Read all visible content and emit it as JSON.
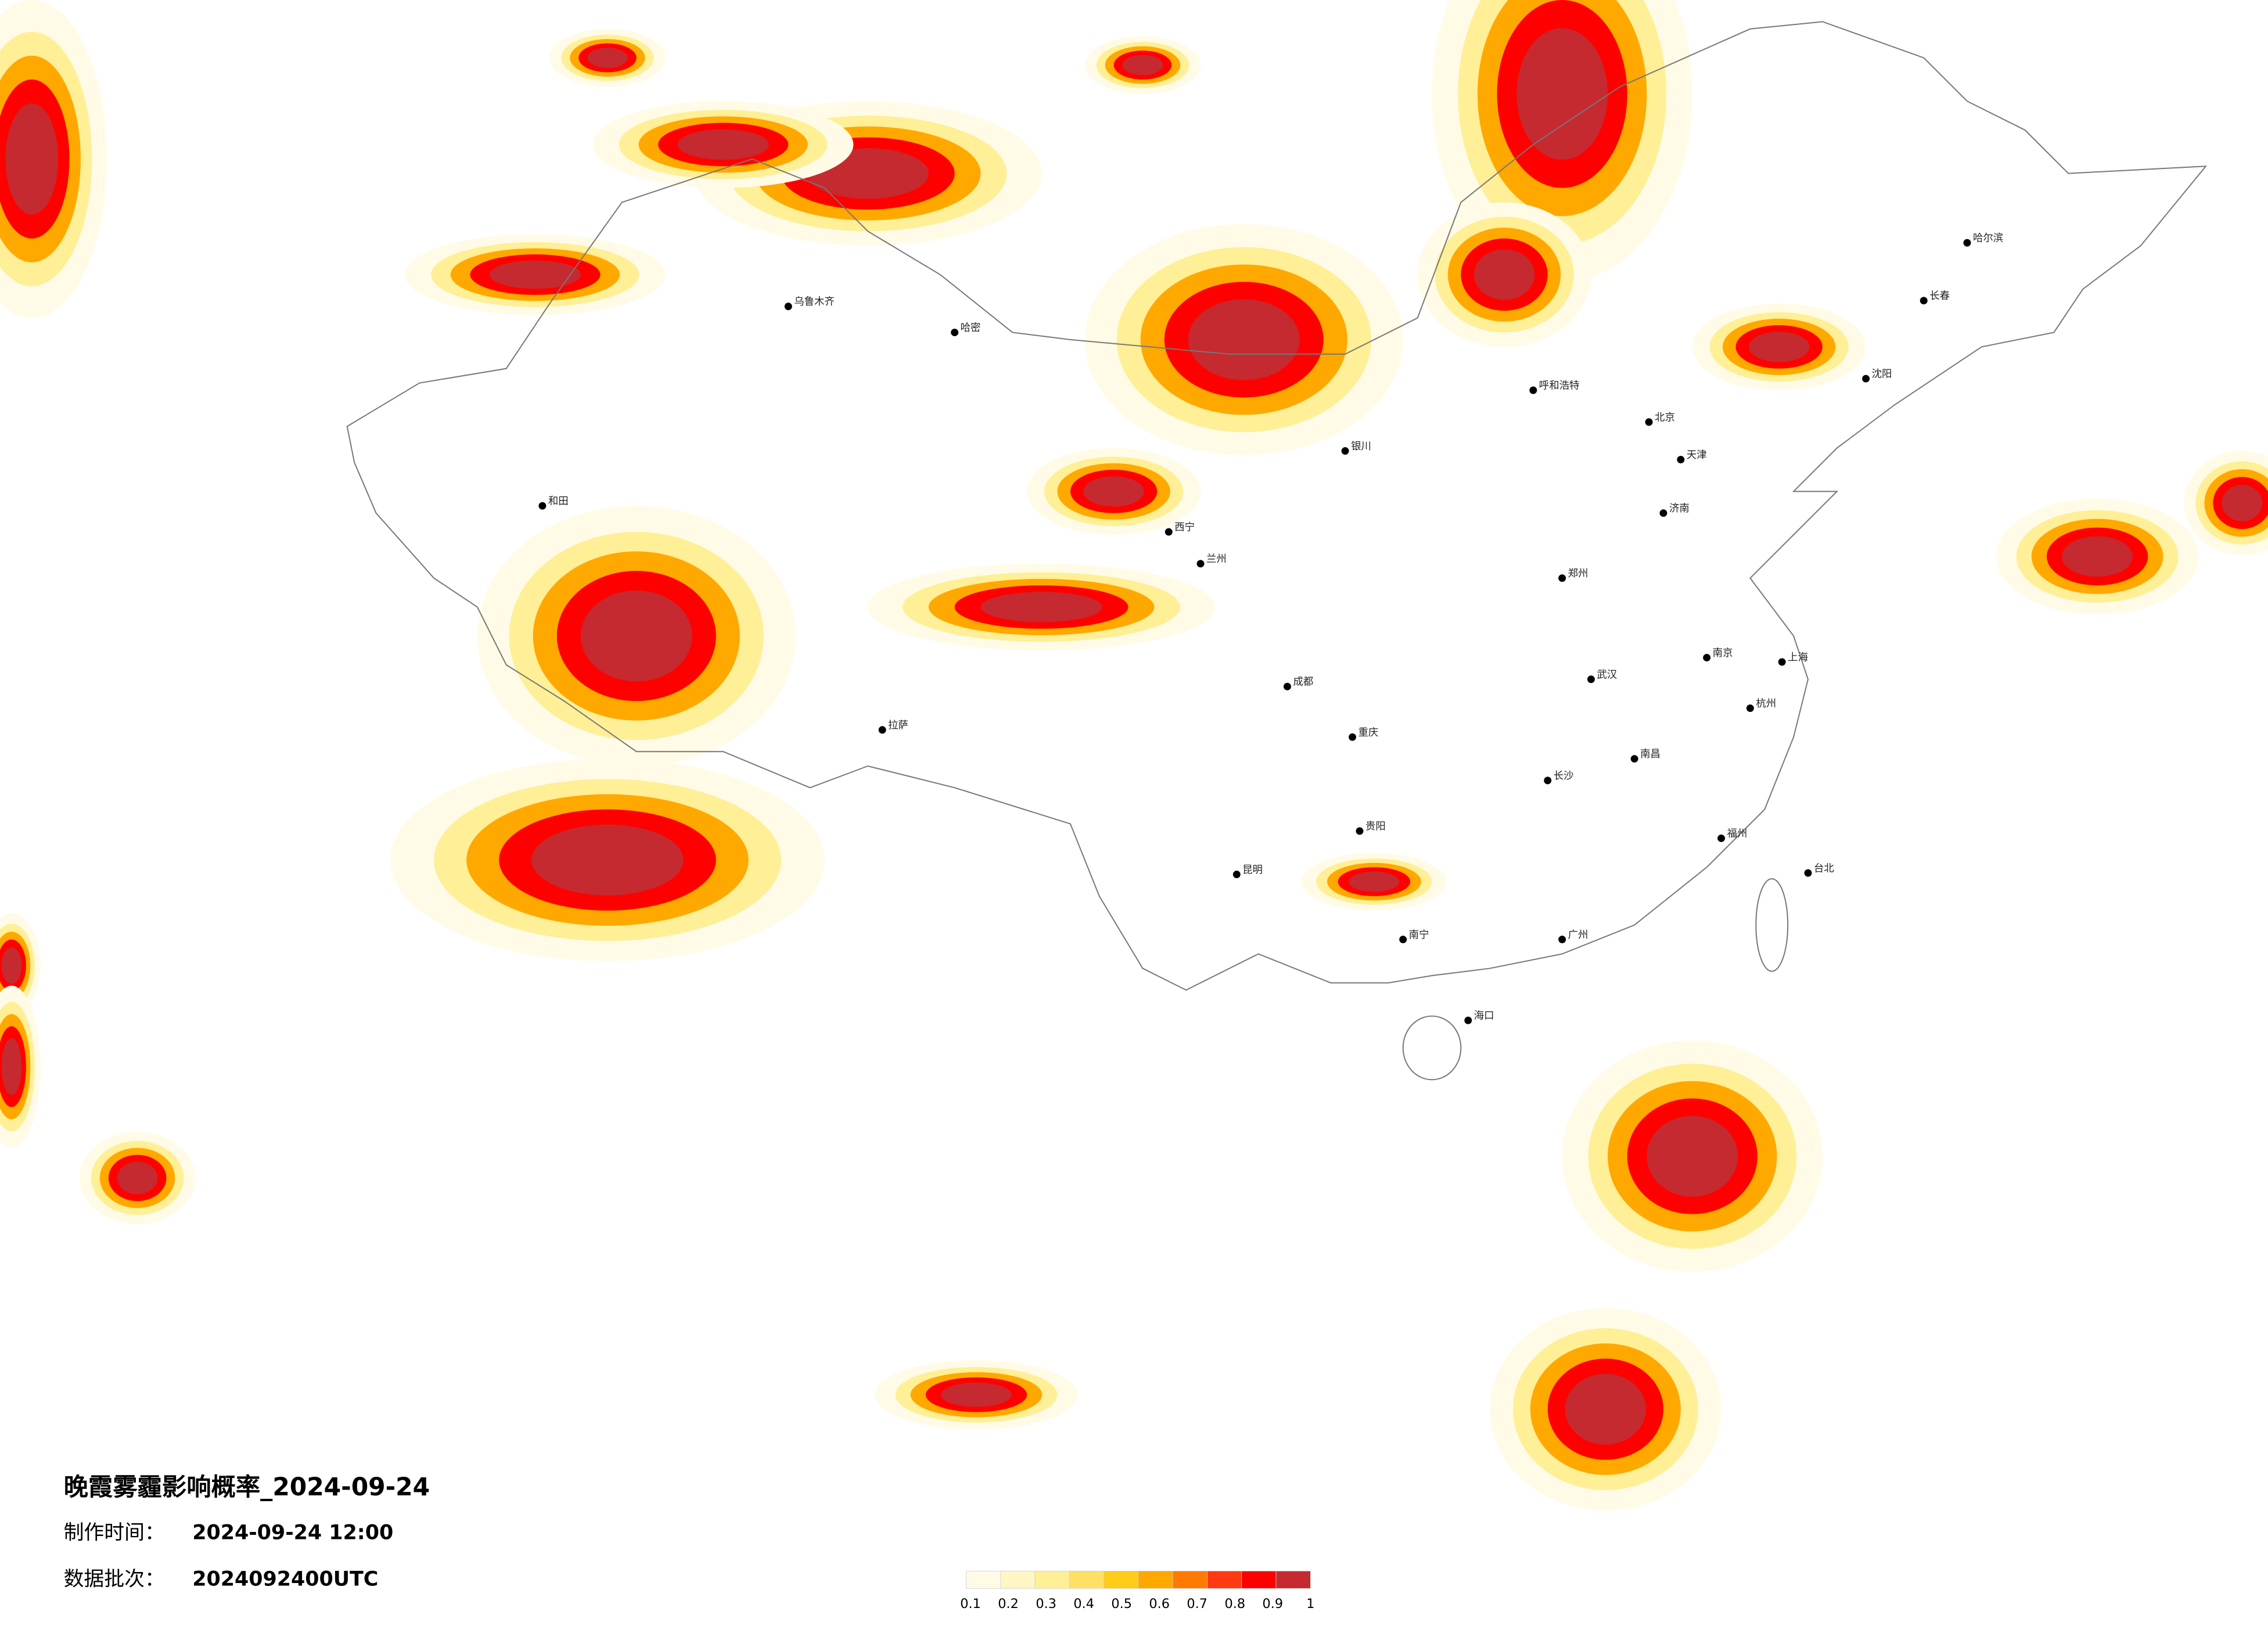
{
  "header": {
    "title": "晚霞雾霾影响概率_2024-09-24",
    "time_label": "制作时间：",
    "time_value": "2024-09-24 12:00",
    "batch_label": "数据批次：",
    "batch_value": "2024092400UTC"
  },
  "colorbar": {
    "ticks": [
      0.1,
      0.2,
      0.3,
      0.4,
      0.5,
      0.6,
      0.7,
      0.8,
      0.9,
      1
    ],
    "colors": [
      "#fffbe6",
      "#fff6c4",
      "#ffef96",
      "#ffe066",
      "#ffcc1a",
      "#ffa800",
      "#ff7a00",
      "#ff3a10",
      "#ff0000",
      "#c52a30"
    ]
  },
  "cities": [
    "哈尔滨",
    "长春",
    "沈阳",
    "北京",
    "天津",
    "呼和浩特",
    "济南",
    "郑州",
    "南京",
    "上海",
    "杭州",
    "武汉",
    "南昌",
    "长沙",
    "福州",
    "台北",
    "广州",
    "南宁",
    "海口",
    "贵阳",
    "昆明",
    "成都",
    "重庆",
    "兰州",
    "西宁",
    "银川",
    "乌鲁木齐",
    "哈密",
    "和田",
    "拉萨"
  ]
}
